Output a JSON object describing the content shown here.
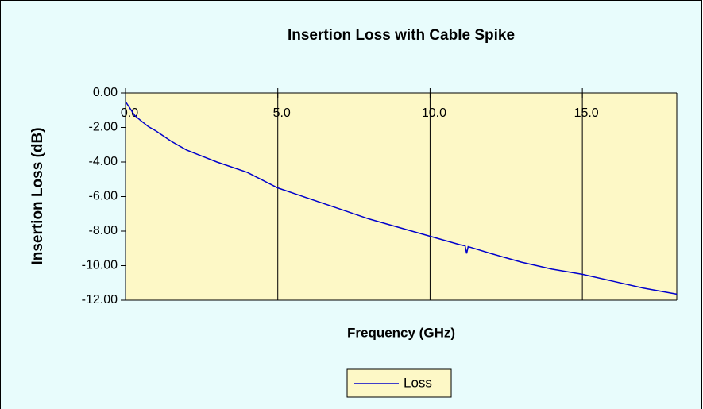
{
  "chart_data": {
    "type": "line",
    "title": "Insertion Loss with Cable Spike",
    "xlabel": "Frequency (GHz)",
    "ylabel": "Insertion Loss (dB)",
    "x": [
      0,
      0.15,
      0.3,
      0.5,
      0.75,
      1,
      1.5,
      2,
      2.5,
      3,
      4,
      5,
      6,
      7,
      8,
      9,
      10,
      11,
      11.15,
      11.2,
      11.25,
      11.35,
      12,
      13,
      14,
      15,
      16,
      17,
      18.1
    ],
    "series": [
      {
        "name": "Loss",
        "color": "#0000cc",
        "values": [
          -0.5,
          -0.9,
          -1.3,
          -1.6,
          -1.95,
          -2.2,
          -2.8,
          -3.3,
          -3.65,
          -4.0,
          -4.6,
          -5.5,
          -6.1,
          -6.7,
          -7.3,
          -7.8,
          -8.3,
          -8.8,
          -8.85,
          -9.3,
          -8.9,
          -8.95,
          -9.3,
          -9.8,
          -10.2,
          -10.5,
          -10.9,
          -11.3,
          -11.65
        ]
      }
    ],
    "xlim": [
      0,
      18.1
    ],
    "ylim": [
      -12,
      0
    ],
    "xticks": [
      {
        "value": 0,
        "label": "0.0"
      },
      {
        "value": 5,
        "label": "5.0"
      },
      {
        "value": 10,
        "label": "10.0"
      },
      {
        "value": 15,
        "label": "15.0"
      }
    ],
    "yticks": [
      {
        "value": 0,
        "label": "0.00"
      },
      {
        "value": -2,
        "label": "-2.00"
      },
      {
        "value": -4,
        "label": "-4.00"
      },
      {
        "value": -6,
        "label": "-6.00"
      },
      {
        "value": -8,
        "label": "-8.00"
      },
      {
        "value": -10,
        "label": "-10.00"
      },
      {
        "value": -12,
        "label": "-12.00"
      }
    ],
    "grid": true,
    "legend": "bottom"
  }
}
